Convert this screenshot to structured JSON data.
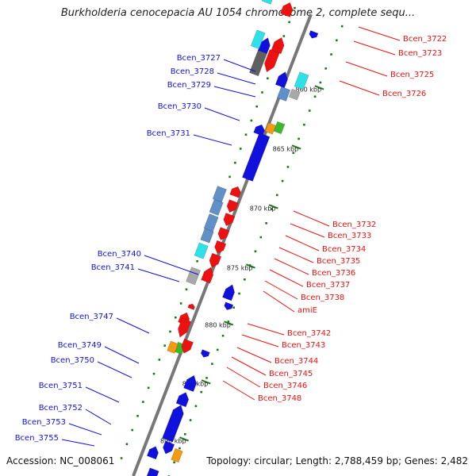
{
  "title": "Burkholderia cenocepacia AU 1054 chromosome 2, complete sequ...",
  "accession": "Accession: NC_008061",
  "summary": "Topology: circular; Length: 2,788,459 bp; Genes: 2,482",
  "colors": {
    "forward": "#ee1111",
    "reverse": "#1111dd",
    "backbone": "#777777",
    "tick": "#1a7a1a",
    "steel": "#5f90c8",
    "cyan": "#2ee0e8",
    "gray": "#a8a8a8",
    "darkgray": "#606060",
    "green": "#3cba2c",
    "orange": "#f59a10"
  },
  "kbp_labels": [
    "860 kbp",
    "865 kbp",
    "870 kbp",
    "875 kbp",
    "880 kbp",
    "885 kbp",
    "890 kbp"
  ],
  "left_labels": [
    "Bcen_3727",
    "Bcen_3728",
    "Bcen_3729",
    "Bcen_3730",
    "Bcen_3731",
    "Bcen_3740",
    "Bcen_3741",
    "Bcen_3747",
    "Bcen_3749",
    "Bcen_3750",
    "Bcen_3751",
    "Bcen_3752",
    "Bcen_3753",
    "Bcen_3755"
  ],
  "right_labels": [
    "Bcen_3722",
    "Bcen_3723",
    "Bcen_3725",
    "Bcen_3726",
    "Bcen_3732",
    "Bcen_3733",
    "Bcen_3734",
    "Bcen_3735",
    "Bcen_3736",
    "Bcen_3737",
    "Bcen_3738",
    "amiE",
    "Bcen_3742",
    "Bcen_3743",
    "Bcen_3744",
    "Bcen_3745",
    "Bcen_3746",
    "Bcen_3748"
  ]
}
